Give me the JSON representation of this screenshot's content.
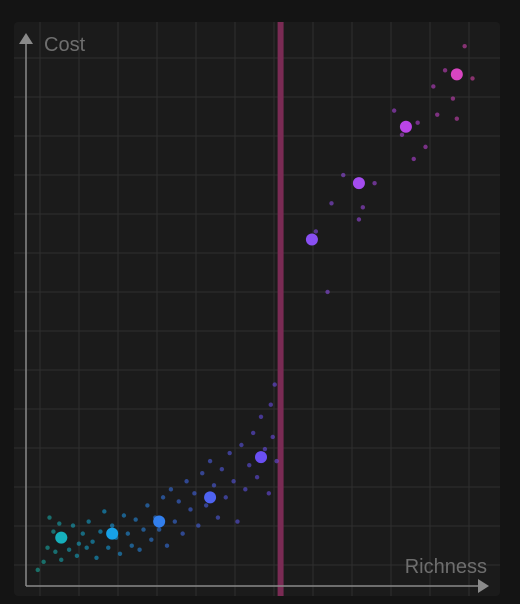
{
  "chart_data": {
    "type": "scatter",
    "title": "",
    "xlabel": "Richness",
    "ylabel": "Cost",
    "xlim": [
      0,
      12
    ],
    "ylim": [
      0,
      14
    ],
    "grid": true,
    "legend": "none",
    "threshold_x": 6.5,
    "background_points": [
      {
        "x": 0.3,
        "y": 0.4
      },
      {
        "x": 0.45,
        "y": 0.6
      },
      {
        "x": 0.55,
        "y": 0.95
      },
      {
        "x": 0.6,
        "y": 1.7
      },
      {
        "x": 0.7,
        "y": 1.35
      },
      {
        "x": 0.75,
        "y": 0.85
      },
      {
        "x": 0.85,
        "y": 1.55
      },
      {
        "x": 0.9,
        "y": 0.65
      },
      {
        "x": 1.0,
        "y": 1.2
      },
      {
        "x": 1.1,
        "y": 0.9
      },
      {
        "x": 1.2,
        "y": 1.5
      },
      {
        "x": 1.3,
        "y": 0.75
      },
      {
        "x": 1.35,
        "y": 1.05
      },
      {
        "x": 1.45,
        "y": 1.3
      },
      {
        "x": 1.55,
        "y": 0.95
      },
      {
        "x": 1.6,
        "y": 1.6
      },
      {
        "x": 1.7,
        "y": 1.1
      },
      {
        "x": 1.8,
        "y": 0.7
      },
      {
        "x": 1.9,
        "y": 1.35
      },
      {
        "x": 2.0,
        "y": 1.85
      },
      {
        "x": 2.1,
        "y": 0.95
      },
      {
        "x": 2.2,
        "y": 1.5
      },
      {
        "x": 2.3,
        "y": 1.2
      },
      {
        "x": 2.4,
        "y": 0.8
      },
      {
        "x": 2.5,
        "y": 1.75
      },
      {
        "x": 2.6,
        "y": 1.3
      },
      {
        "x": 2.7,
        "y": 1.0
      },
      {
        "x": 2.8,
        "y": 1.65
      },
      {
        "x": 2.9,
        "y": 0.9
      },
      {
        "x": 3.0,
        "y": 1.4
      },
      {
        "x": 3.1,
        "y": 2.0
      },
      {
        "x": 3.2,
        "y": 1.15
      },
      {
        "x": 3.3,
        "y": 1.7
      },
      {
        "x": 3.4,
        "y": 1.4
      },
      {
        "x": 3.5,
        "y": 2.2
      },
      {
        "x": 3.6,
        "y": 1.0
      },
      {
        "x": 3.7,
        "y": 2.4
      },
      {
        "x": 3.8,
        "y": 1.6
      },
      {
        "x": 3.9,
        "y": 2.1
      },
      {
        "x": 4.0,
        "y": 1.3
      },
      {
        "x": 4.1,
        "y": 2.6
      },
      {
        "x": 4.2,
        "y": 1.9
      },
      {
        "x": 4.3,
        "y": 2.3
      },
      {
        "x": 4.4,
        "y": 1.5
      },
      {
        "x": 4.5,
        "y": 2.8
      },
      {
        "x": 4.6,
        "y": 2.0
      },
      {
        "x": 4.7,
        "y": 3.1
      },
      {
        "x": 4.8,
        "y": 2.5
      },
      {
        "x": 4.9,
        "y": 1.7
      },
      {
        "x": 5.0,
        "y": 2.9
      },
      {
        "x": 5.1,
        "y": 2.2
      },
      {
        "x": 5.2,
        "y": 3.3
      },
      {
        "x": 5.3,
        "y": 2.6
      },
      {
        "x": 5.4,
        "y": 1.6
      },
      {
        "x": 5.5,
        "y": 3.5
      },
      {
        "x": 5.6,
        "y": 2.4
      },
      {
        "x": 5.7,
        "y": 3.0
      },
      {
        "x": 5.8,
        "y": 3.8
      },
      {
        "x": 5.9,
        "y": 2.7
      },
      {
        "x": 6.0,
        "y": 4.2
      },
      {
        "x": 6.1,
        "y": 3.4
      },
      {
        "x": 6.2,
        "y": 2.3
      },
      {
        "x": 6.25,
        "y": 4.5
      },
      {
        "x": 6.3,
        "y": 3.7
      },
      {
        "x": 6.35,
        "y": 5.0
      },
      {
        "x": 6.4,
        "y": 3.1
      },
      {
        "x": 7.4,
        "y": 8.8
      },
      {
        "x": 7.7,
        "y": 7.3
      },
      {
        "x": 7.8,
        "y": 9.5
      },
      {
        "x": 8.1,
        "y": 10.2
      },
      {
        "x": 8.5,
        "y": 9.1
      },
      {
        "x": 8.6,
        "y": 9.4
      },
      {
        "x": 8.9,
        "y": 10.0
      },
      {
        "x": 9.4,
        "y": 11.8
      },
      {
        "x": 9.6,
        "y": 11.2
      },
      {
        "x": 9.9,
        "y": 10.6
      },
      {
        "x": 10.0,
        "y": 11.5
      },
      {
        "x": 10.2,
        "y": 10.9
      },
      {
        "x": 10.4,
        "y": 12.4
      },
      {
        "x": 10.5,
        "y": 11.7
      },
      {
        "x": 10.7,
        "y": 12.8
      },
      {
        "x": 10.9,
        "y": 12.1
      },
      {
        "x": 11.0,
        "y": 11.6
      },
      {
        "x": 11.2,
        "y": 13.4
      },
      {
        "x": 11.4,
        "y": 12.6
      }
    ],
    "highlighted_points": [
      {
        "x": 0.9,
        "y": 1.2
      },
      {
        "x": 2.2,
        "y": 1.3
      },
      {
        "x": 3.4,
        "y": 1.6
      },
      {
        "x": 4.7,
        "y": 2.2
      },
      {
        "x": 6.0,
        "y": 3.2
      },
      {
        "x": 7.3,
        "y": 8.6
      },
      {
        "x": 8.5,
        "y": 10.0
      },
      {
        "x": 9.7,
        "y": 11.4
      },
      {
        "x": 11.0,
        "y": 12.7
      }
    ]
  },
  "colors": {
    "background": "#141414",
    "plot_area": "#1b1b1b",
    "grid": "#2f2f2f",
    "axis": "#8a8a8a",
    "label": "#6e6e6e",
    "threshold": "#7a2b54",
    "gradient_stops": [
      "#19b89a",
      "#12a7e6",
      "#3f6ef0",
      "#6a4ff2",
      "#9a4ff2",
      "#c142e6",
      "#f0479b"
    ]
  }
}
